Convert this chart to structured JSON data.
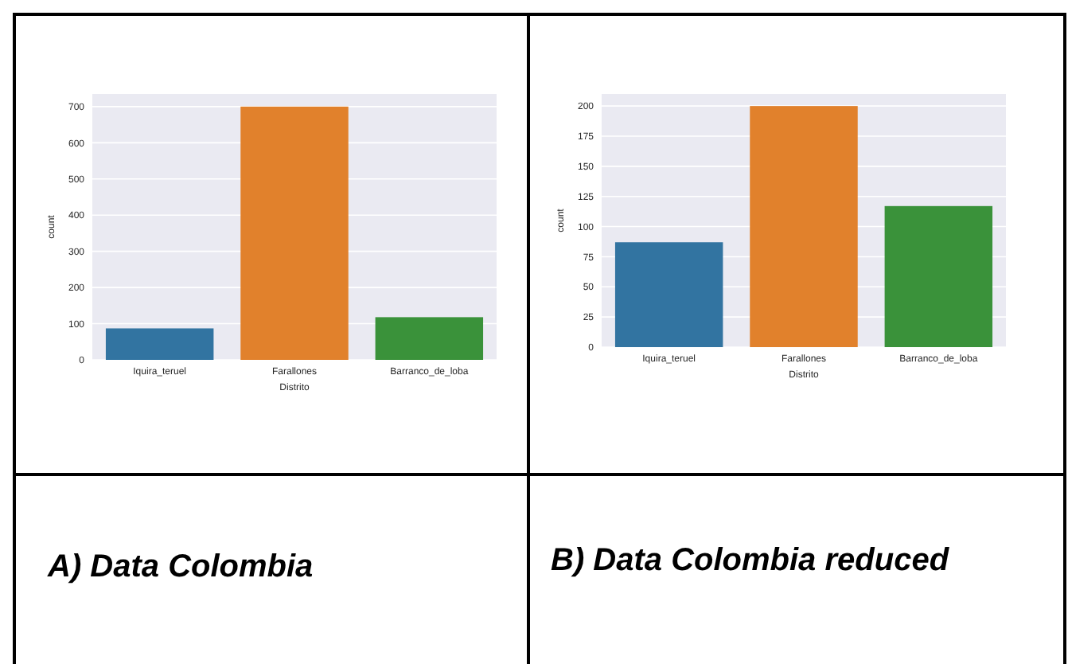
{
  "chart_data": [
    {
      "type": "bar",
      "xlabel": "Distrito",
      "ylabel": "count",
      "categories": [
        "Iquira_teruel",
        "Farallones",
        "Barranco_de_loba"
      ],
      "values": [
        87,
        700,
        118
      ],
      "colors": [
        "#3274a1",
        "#e1812c",
        "#3a923a"
      ],
      "ylim": [
        0,
        735
      ],
      "yticks": [
        0,
        100,
        200,
        300,
        400,
        500,
        600,
        700
      ],
      "grid": "y",
      "annotations": [
        "A) Data Colombia"
      ]
    },
    {
      "type": "bar",
      "xlabel": "Distrito",
      "ylabel": "count",
      "categories": [
        "Iquira_teruel",
        "Farallones",
        "Barranco_de_loba"
      ],
      "values": [
        87,
        200,
        117
      ],
      "colors": [
        "#3274a1",
        "#e1812c",
        "#3a923a"
      ],
      "ylim": [
        0,
        210
      ],
      "yticks": [
        0,
        25,
        50,
        75,
        100,
        125,
        150,
        175,
        200
      ],
      "grid": "y",
      "annotations": [
        "B) Data Colombia reduced"
      ]
    }
  ]
}
